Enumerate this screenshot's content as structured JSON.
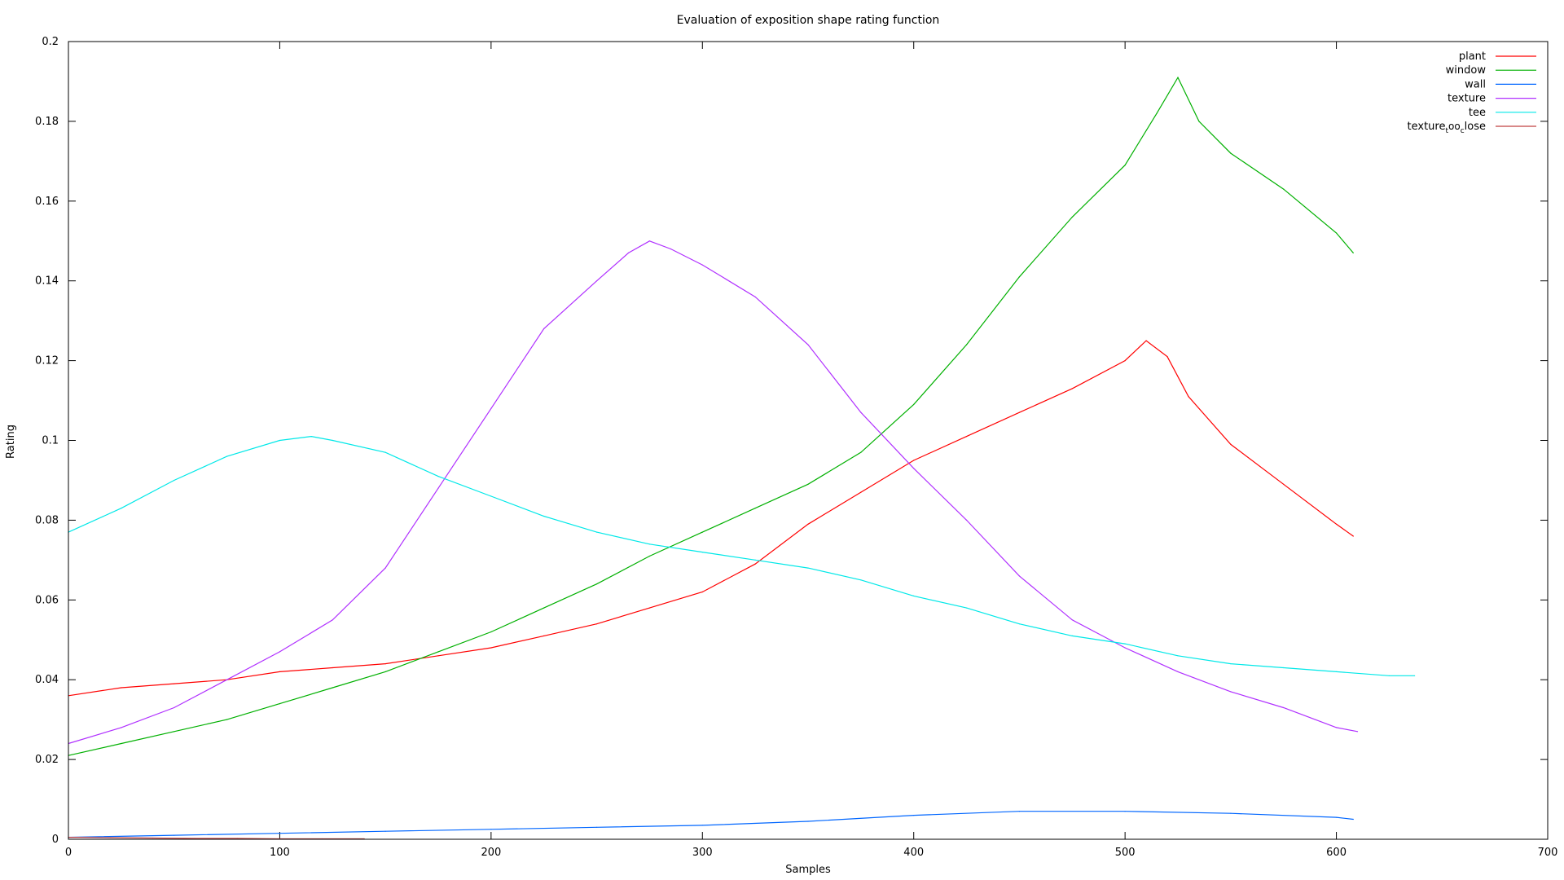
{
  "chart_data": {
    "type": "line",
    "title": "Evaluation of exposition shape rating function",
    "xlabel": "Samples",
    "ylabel": "Rating",
    "xlim": [
      0,
      700
    ],
    "ylim": [
      0,
      0.2
    ],
    "xticks": [
      0,
      100,
      200,
      300,
      400,
      500,
      600,
      700
    ],
    "yticks": [
      0,
      0.02,
      0.04,
      0.06,
      0.08,
      0.1,
      0.12,
      0.14,
      0.16,
      0.18,
      0.2
    ],
    "xtick_labels": [
      "0",
      "100",
      "200",
      "300",
      "400",
      "500",
      "600",
      "700"
    ],
    "ytick_labels": [
      "0",
      "0.02",
      "0.04",
      "0.06",
      "0.08",
      "0.1",
      "0.12",
      "0.14",
      "0.16",
      "0.18",
      "0.2"
    ],
    "grid": false,
    "legend_position": "top-right",
    "series": [
      {
        "name": "plant",
        "color": "#ff0000",
        "x": [
          0,
          25,
          50,
          75,
          100,
          125,
          150,
          175,
          200,
          225,
          250,
          275,
          300,
          325,
          350,
          375,
          400,
          425,
          450,
          475,
          500,
          510,
          520,
          530,
          550,
          575,
          600,
          608
        ],
        "y": [
          0.036,
          0.038,
          0.039,
          0.04,
          0.042,
          0.043,
          0.044,
          0.046,
          0.048,
          0.051,
          0.054,
          0.058,
          0.062,
          0.069,
          0.079,
          0.087,
          0.095,
          0.101,
          0.107,
          0.113,
          0.12,
          0.125,
          0.121,
          0.111,
          0.099,
          0.089,
          0.079,
          0.076
        ]
      },
      {
        "name": "window",
        "color": "#00b000",
        "x": [
          0,
          25,
          50,
          75,
          100,
          125,
          150,
          175,
          200,
          225,
          250,
          275,
          300,
          325,
          350,
          375,
          400,
          425,
          450,
          475,
          500,
          515,
          525,
          535,
          550,
          575,
          600,
          608
        ],
        "y": [
          0.021,
          0.024,
          0.027,
          0.03,
          0.034,
          0.038,
          0.042,
          0.047,
          0.052,
          0.058,
          0.064,
          0.071,
          0.077,
          0.083,
          0.089,
          0.097,
          0.109,
          0.124,
          0.141,
          0.156,
          0.169,
          0.182,
          0.191,
          0.18,
          0.172,
          0.163,
          0.152,
          0.147
        ]
      },
      {
        "name": "wall",
        "color": "#0066ff",
        "x": [
          0,
          50,
          100,
          150,
          200,
          250,
          300,
          350,
          400,
          450,
          500,
          550,
          600,
          608
        ],
        "y": [
          0.0005,
          0.001,
          0.0015,
          0.002,
          0.0025,
          0.003,
          0.0035,
          0.0045,
          0.006,
          0.007,
          0.007,
          0.0065,
          0.0055,
          0.005
        ]
      },
      {
        "name": "texture",
        "color": "#b030ff",
        "x": [
          0,
          25,
          50,
          75,
          100,
          125,
          150,
          175,
          200,
          225,
          250,
          265,
          275,
          285,
          300,
          325,
          350,
          375,
          400,
          425,
          450,
          475,
          500,
          525,
          550,
          575,
          600,
          610
        ],
        "y": [
          0.024,
          0.028,
          0.033,
          0.04,
          0.047,
          0.055,
          0.068,
          0.088,
          0.108,
          0.128,
          0.14,
          0.147,
          0.15,
          0.148,
          0.144,
          0.136,
          0.124,
          0.107,
          0.093,
          0.08,
          0.066,
          0.055,
          0.048,
          0.042,
          0.037,
          0.033,
          0.028,
          0.027
        ]
      },
      {
        "name": "tee",
        "color": "#00e8e8",
        "x": [
          0,
          25,
          50,
          75,
          100,
          115,
          125,
          150,
          175,
          200,
          225,
          250,
          275,
          300,
          325,
          350,
          375,
          400,
          425,
          450,
          475,
          500,
          525,
          550,
          575,
          600,
          625,
          637
        ],
        "y": [
          0.077,
          0.083,
          0.09,
          0.096,
          0.1,
          0.101,
          0.1,
          0.097,
          0.091,
          0.086,
          0.081,
          0.077,
          0.074,
          0.072,
          0.07,
          0.068,
          0.065,
          0.061,
          0.058,
          0.054,
          0.051,
          0.049,
          0.046,
          0.044,
          0.043,
          0.042,
          0.041,
          0.041
        ]
      },
      {
        "name": "texture_too_close",
        "legend_parts": [
          "texture",
          "t",
          "oo",
          "c",
          "lose"
        ],
        "color": "#c04040",
        "x": [
          0,
          20,
          40,
          60,
          80,
          100,
          120,
          140
        ],
        "y": [
          0.0005,
          0.0004,
          0.0003,
          0.0002,
          0.0002,
          0.0001,
          0.0001,
          0.0001
        ]
      }
    ]
  }
}
